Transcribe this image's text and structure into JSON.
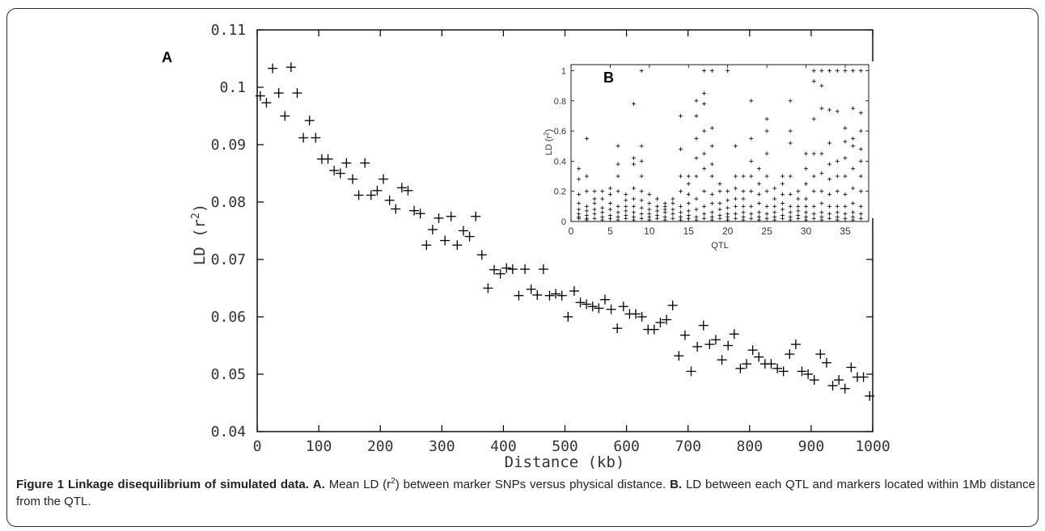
{
  "chart_data": [
    {
      "type": "scatter",
      "panel_label": "A",
      "xlabel": "Distance (kb)",
      "ylabel_main": "LD (r",
      "ylabel_sup": "2",
      "ylabel_end": ")",
      "xlim": [
        0,
        1000
      ],
      "ylim": [
        0.04,
        0.11
      ],
      "x_ticks": [
        0,
        100,
        200,
        300,
        400,
        500,
        600,
        700,
        800,
        900,
        1000
      ],
      "y_ticks": [
        0.04,
        0.05,
        0.06,
        0.07,
        0.08,
        0.09,
        0.1,
        0.11
      ],
      "grid": false,
      "marker": "plus",
      "x": [
        5,
        15,
        25,
        35,
        45,
        55,
        65,
        75,
        85,
        95,
        105,
        115,
        125,
        135,
        145,
        155,
        165,
        175,
        185,
        195,
        205,
        215,
        225,
        235,
        245,
        255,
        265,
        275,
        285,
        295,
        305,
        315,
        325,
        335,
        345,
        355,
        365,
        375,
        385,
        395,
        405,
        415,
        425,
        435,
        445,
        455,
        465,
        475,
        485,
        495,
        505,
        515,
        525,
        535,
        545,
        555,
        565,
        575,
        585,
        595,
        605,
        615,
        625,
        635,
        645,
        655,
        665,
        675,
        685,
        695,
        705,
        715,
        725,
        735,
        745,
        755,
        765,
        775,
        785,
        795,
        805,
        815,
        825,
        835,
        845,
        855,
        865,
        875,
        885,
        895,
        905,
        915,
        925,
        935,
        945,
        955,
        965,
        975,
        985,
        995
      ],
      "y": [
        0.0985,
        0.0973,
        0.1033,
        0.099,
        0.095,
        0.1035,
        0.099,
        0.0912,
        0.0942,
        0.0912,
        0.0875,
        0.0875,
        0.0855,
        0.085,
        0.0868,
        0.084,
        0.0812,
        0.0868,
        0.0812,
        0.082,
        0.084,
        0.0803,
        0.0788,
        0.0825,
        0.082,
        0.0785,
        0.078,
        0.0725,
        0.0752,
        0.0772,
        0.0733,
        0.0775,
        0.0725,
        0.075,
        0.074,
        0.0775,
        0.0708,
        0.065,
        0.0682,
        0.0675,
        0.0685,
        0.0683,
        0.0637,
        0.0683,
        0.0648,
        0.0638,
        0.0683,
        0.0637,
        0.064,
        0.0637,
        0.06,
        0.0645,
        0.0625,
        0.0622,
        0.0618,
        0.0615,
        0.063,
        0.0613,
        0.058,
        0.0618,
        0.0605,
        0.0605,
        0.06,
        0.0578,
        0.0578,
        0.059,
        0.0595,
        0.062,
        0.0532,
        0.0568,
        0.0505,
        0.0548,
        0.0585,
        0.0552,
        0.056,
        0.0525,
        0.055,
        0.057,
        0.051,
        0.0518,
        0.0542,
        0.053,
        0.0518,
        0.0518,
        0.051,
        0.0505,
        0.0535,
        0.0552,
        0.0505,
        0.05,
        0.049,
        0.0535,
        0.052,
        0.048,
        0.049,
        0.0475,
        0.0512,
        0.0495,
        0.0495,
        0.0462
      ]
    },
    {
      "type": "scatter",
      "panel_label": "B",
      "xlabel": "QTL",
      "ylabel_main": "LD (r",
      "ylabel_sup": "2",
      "ylabel_end": ")",
      "xlim": [
        0,
        38
      ],
      "ylim": [
        0,
        1.04
      ],
      "x_ticks": [
        0,
        5,
        10,
        15,
        20,
        25,
        30,
        35
      ],
      "y_ticks": [
        0,
        0.2,
        0.4,
        0.6,
        0.8,
        1
      ],
      "grid": false,
      "marker": "plus",
      "qtl": [
        1,
        2,
        3,
        4,
        5,
        6,
        7,
        8,
        9,
        10,
        11,
        12,
        13,
        14,
        15,
        16,
        17,
        18,
        19,
        20,
        21,
        22,
        23,
        24,
        25,
        26,
        27,
        28,
        29,
        30,
        31,
        32,
        33,
        34,
        35,
        36,
        37
      ],
      "ld_values": [
        [
          0.02,
          0.03,
          0.05,
          0.08,
          0.12,
          0.18,
          0.28,
          0.35
        ],
        [
          0.01,
          0.02,
          0.04,
          0.07,
          0.1,
          0.2,
          0.3,
          0.55
        ],
        [
          0.02,
          0.05,
          0.08,
          0.12,
          0.15,
          0.2
        ],
        [
          0.01,
          0.03,
          0.06,
          0.09,
          0.15,
          0.2
        ],
        [
          0.02,
          0.04,
          0.08,
          0.12,
          0.18,
          0.22
        ],
        [
          0.01,
          0.03,
          0.06,
          0.1,
          0.2,
          0.3,
          0.38,
          0.5
        ],
        [
          0.02,
          0.04,
          0.07,
          0.1,
          0.14,
          0.18
        ],
        [
          0.01,
          0.03,
          0.06,
          0.1,
          0.15,
          0.22,
          0.38,
          0.42,
          0.78
        ],
        [
          0.02,
          0.05,
          0.09,
          0.14,
          0.2,
          0.3,
          0.4,
          0.5,
          1.0
        ],
        [
          0.01,
          0.03,
          0.05,
          0.08,
          0.12,
          0.18
        ],
        [
          0.02,
          0.04,
          0.07,
          0.1,
          0.15
        ],
        [
          0.01,
          0.03,
          0.06,
          0.08,
          0.1,
          0.12
        ],
        [
          0.02,
          0.05,
          0.08,
          0.12,
          0.15
        ],
        [
          0.01,
          0.03,
          0.06,
          0.1,
          0.2,
          0.3,
          0.48,
          0.7
        ],
        [
          0.02,
          0.04,
          0.07,
          0.12,
          0.18,
          0.25,
          0.3
        ],
        [
          0.01,
          0.03,
          0.08,
          0.15,
          0.3,
          0.42,
          0.55,
          0.7,
          0.8
        ],
        [
          0.02,
          0.05,
          0.1,
          0.2,
          0.35,
          0.45,
          0.6,
          0.78,
          0.85,
          1.0
        ],
        [
          0.01,
          0.03,
          0.06,
          0.12,
          0.18,
          0.3,
          0.38,
          0.5,
          0.62,
          1.0
        ],
        [
          0.02,
          0.04,
          0.08,
          0.12,
          0.2,
          0.25
        ],
        [
          0.01,
          0.03,
          0.05,
          0.09,
          0.14,
          0.2,
          1.0
        ],
        [
          0.02,
          0.05,
          0.1,
          0.15,
          0.22,
          0.3,
          0.5
        ],
        [
          0.01,
          0.03,
          0.06,
          0.1,
          0.15,
          0.2,
          0.3
        ],
        [
          0.02,
          0.05,
          0.1,
          0.2,
          0.3,
          0.4,
          0.55,
          0.8
        ],
        [
          0.01,
          0.03,
          0.06,
          0.12,
          0.18,
          0.25,
          0.35
        ],
        [
          0.02,
          0.05,
          0.1,
          0.2,
          0.3,
          0.45,
          0.6,
          0.68
        ],
        [
          0.01,
          0.03,
          0.06,
          0.1,
          0.15,
          0.22
        ],
        [
          0.02,
          0.04,
          0.08,
          0.12,
          0.18,
          0.25,
          0.3
        ],
        [
          0.01,
          0.03,
          0.06,
          0.1,
          0.18,
          0.3,
          0.52,
          0.6,
          0.8
        ],
        [
          0.02,
          0.04,
          0.07,
          0.1,
          0.15,
          0.2
        ],
        [
          0.01,
          0.03,
          0.06,
          0.1,
          0.15,
          0.25,
          0.35,
          0.45
        ],
        [
          0.02,
          0.05,
          0.1,
          0.2,
          0.3,
          0.45,
          0.68,
          0.93,
          1.0
        ],
        [
          0.01,
          0.03,
          0.06,
          0.12,
          0.2,
          0.32,
          0.45,
          0.75,
          0.9,
          1.0
        ],
        [
          0.02,
          0.05,
          0.1,
          0.18,
          0.28,
          0.38,
          0.52,
          0.74,
          1.0
        ],
        [
          0.01,
          0.03,
          0.06,
          0.1,
          0.2,
          0.3,
          0.4,
          0.73,
          1.0
        ],
        [
          0.02,
          0.05,
          0.1,
          0.18,
          0.3,
          0.42,
          0.53,
          0.62,
          1.0
        ],
        [
          0.01,
          0.03,
          0.06,
          0.12,
          0.22,
          0.35,
          0.5,
          0.55,
          0.75,
          1.0
        ],
        [
          0.02,
          0.05,
          0.1,
          0.2,
          0.3,
          0.4,
          0.48,
          0.6,
          0.72,
          1.0
        ]
      ]
    }
  ],
  "caption": {
    "figure_label": "Figure 1 Linkage disequilibrium of simulated data.",
    "a_label": "A.",
    "a_text_1": "Mean LD (r",
    "a_text_sup": "2",
    "a_text_2": ") between marker SNPs versus physical distance.",
    "b_label": "B.",
    "b_text": "LD between each QTL and markers located within 1Mb distance from the QTL."
  }
}
